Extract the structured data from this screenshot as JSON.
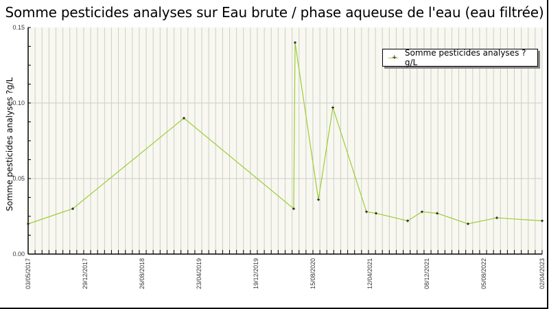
{
  "chart_data": {
    "type": "line",
    "title": "Somme pesticides analyses sur Eau brute / phase aqueuse de l'eau (eau filtrée)",
    "xlabel": "",
    "ylabel": "Somme pesticides analyses ?g/L",
    "ylim": [
      0,
      0.15
    ],
    "yticks": [
      "0.00",
      "0.05",
      "0.10",
      "0.15"
    ],
    "xticks": [
      "03/05/2017",
      "29/12/2017",
      "26/08/2018",
      "23/04/2019",
      "19/12/2019",
      "15/08/2020",
      "12/04/2021",
      "08/12/2021",
      "05/08/2022",
      "02/04/2023"
    ],
    "grid": true,
    "legend_position": "upper-right",
    "series": [
      {
        "name": "Somme pesticides analyses ?g/L",
        "color": "#9acd32",
        "marker": "+",
        "x": [
          "03/05/2017",
          "~11/2017",
          "~02/2019",
          "~06/2020",
          "~06/2020",
          "~08/2020",
          "~10/2020",
          "~03/2021",
          "~04/2021",
          "~08/2021",
          "~10/2021",
          "~12/2021",
          "~05/2022",
          "~09/2022",
          "02/04/2023"
        ],
        "values": [
          0.02,
          0.03,
          0.09,
          0.03,
          0.14,
          0.036,
          0.097,
          0.028,
          0.027,
          0.022,
          0.028,
          0.027,
          0.02,
          0.024,
          0.022
        ]
      }
    ]
  },
  "title": "Somme pesticides analyses sur Eau brute / phase aqueuse de l'eau (eau filtrée)",
  "ylabel": "Somme pesticides analyses ?g/L",
  "legend": {
    "label": "Somme pesticides analyses ?g/L"
  },
  "colors": {
    "plot_bg": "#f8f8f0",
    "grid": "#cccccc",
    "line": "#9acd32",
    "marker": "#000000"
  }
}
